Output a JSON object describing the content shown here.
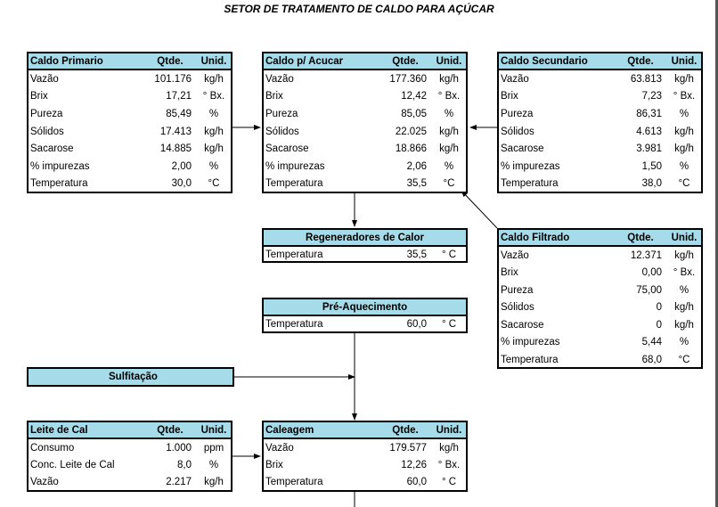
{
  "title": "SETOR DE TRATAMENTO DE CALDO PARA AÇÚCAR",
  "panels": {
    "caldo_primario": {
      "header": {
        "name": "Caldo Primario",
        "qty": "Qtde.",
        "unit": "Unid."
      },
      "rows": [
        {
          "name": "Vazão",
          "qty": "101.176",
          "unit": "kg/h"
        },
        {
          "name": "Brix",
          "qty": "17,21",
          "unit": "° Bx."
        },
        {
          "name": "Pureza",
          "qty": "85,49",
          "unit": "%"
        },
        {
          "name": "Sólidos",
          "qty": "17.413",
          "unit": "kg/h"
        },
        {
          "name": "Sacarose",
          "qty": "14.885",
          "unit": "kg/h"
        },
        {
          "name": "% impurezas",
          "qty": "2,00",
          "unit": "%"
        },
        {
          "name": "Temperatura",
          "qty": "30,0",
          "unit": "°C"
        }
      ]
    },
    "caldo_acucar": {
      "header": {
        "name": "Caldo p/ Acucar",
        "qty": "Qtde.",
        "unit": "Unid."
      },
      "rows": [
        {
          "name": "Vazão",
          "qty": "177.360",
          "unit": "kg/h"
        },
        {
          "name": "Brix",
          "qty": "12,42",
          "unit": "° Bx."
        },
        {
          "name": "Pureza",
          "qty": "85,05",
          "unit": "%"
        },
        {
          "name": "Sólidos",
          "qty": "22.025",
          "unit": "kg/h"
        },
        {
          "name": "Sacarose",
          "qty": "18.866",
          "unit": "kg/h"
        },
        {
          "name": "% impurezas",
          "qty": "2,06",
          "unit": "%"
        },
        {
          "name": "Temperatura",
          "qty": "35,5",
          "unit": "°C"
        }
      ]
    },
    "caldo_secundario": {
      "header": {
        "name": "Caldo Secundario",
        "qty": "Qtde.",
        "unit": "Unid."
      },
      "rows": [
        {
          "name": "Vazão",
          "qty": "63.813",
          "unit": "kg/h"
        },
        {
          "name": "Brix",
          "qty": "7,23",
          "unit": "° Bx."
        },
        {
          "name": "Pureza",
          "qty": "86,31",
          "unit": "%"
        },
        {
          "name": "Sólidos",
          "qty": "4.613",
          "unit": "kg/h"
        },
        {
          "name": "Sacarose",
          "qty": "3.981",
          "unit": "kg/h"
        },
        {
          "name": "% impurezas",
          "qty": "1,50",
          "unit": "%"
        },
        {
          "name": "Temperatura",
          "qty": "38,0",
          "unit": "°C"
        }
      ]
    },
    "caldo_filtrado": {
      "header": {
        "name": "Caldo Filtrado",
        "qty": "Qtde.",
        "unit": "Unid."
      },
      "rows": [
        {
          "name": "Vazão",
          "qty": "12.371",
          "unit": "kg/h"
        },
        {
          "name": "Brix",
          "qty": "0,00",
          "unit": "° Bx."
        },
        {
          "name": "Pureza",
          "qty": "75,00",
          "unit": "%"
        },
        {
          "name": "Sólidos",
          "qty": "0",
          "unit": "kg/h"
        },
        {
          "name": "Sacarose",
          "qty": "0",
          "unit": "kg/h"
        },
        {
          "name": "% impurezas",
          "qty": "5,44",
          "unit": "%"
        },
        {
          "name": "Temperatura",
          "qty": "68,0",
          "unit": "°C"
        }
      ]
    },
    "regeneradores": {
      "header": "Regeneradores de Calor",
      "row": {
        "name": "Temperatura",
        "qty": "35,5",
        "unit": "° C"
      }
    },
    "pre_aquecimento": {
      "header": "Pré-Aquecimento",
      "row": {
        "name": "Temperatura",
        "qty": "60,0",
        "unit": "° C"
      }
    },
    "sulfitacao": {
      "header": "Sulfitação"
    },
    "leite_de_cal": {
      "header": {
        "name": "Leite de Cal",
        "qty": "Qtde.",
        "unit": "Unid."
      },
      "rows": [
        {
          "name": "Consumo",
          "qty": "1.000",
          "unit": "ppm"
        },
        {
          "name": "Conc. Leite de Cal",
          "qty": "8,0",
          "unit": "%"
        },
        {
          "name": "Vazão",
          "qty": "2.217",
          "unit": "kg/h"
        }
      ]
    },
    "caleagem": {
      "header": {
        "name": "Caleagem",
        "qty": "Qtde.",
        "unit": "Unid."
      },
      "rows": [
        {
          "name": "Vazão",
          "qty": "179.577",
          "unit": "kg/h"
        },
        {
          "name": "Brix",
          "qty": "12,26",
          "unit": "° Bx."
        },
        {
          "name": "Temperatura",
          "qty": "60,0",
          "unit": "° C"
        }
      ]
    }
  }
}
